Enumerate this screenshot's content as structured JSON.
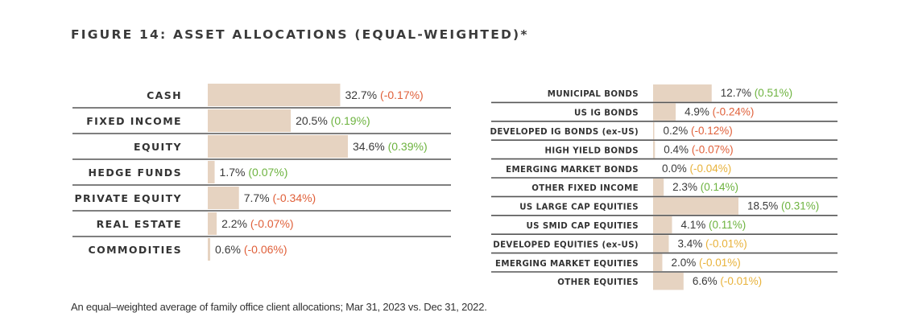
{
  "title": "FIGURE 14: ASSET ALLOCATIONS (EQUAL-WEIGHTED)*",
  "footnote": "An equal–weighted average of family office client allocations; Mar 31, 2023 vs. Dec 31, 2022.",
  "colors": {
    "bar": "#e6d3c1",
    "positive": "#6db33f",
    "negative": "#e0603a",
    "neutral_change": "#e8b23a",
    "rule": "#555555"
  },
  "chart_data": [
    {
      "type": "bar",
      "orientation": "horizontal",
      "categories": [
        "CASH",
        "FIXED INCOME",
        "EQUITY",
        "HEDGE FUNDS",
        "PRIVATE EQUITY",
        "REAL ESTATE",
        "COMMODITIES"
      ],
      "values": [
        32.7,
        20.5,
        34.6,
        1.7,
        7.7,
        2.2,
        0.6
      ],
      "value_labels": [
        "32.7%",
        "20.5%",
        "34.6%",
        "1.7%",
        "7.7%",
        "2.2%",
        "0.6%"
      ],
      "change_labels": [
        "(-0.17%)",
        "(0.19%)",
        "(0.39%)",
        "(0.07%)",
        "(-0.34%)",
        "(-0.07%)",
        "(-0.06%)"
      ],
      "change_status": [
        "negative",
        "positive",
        "positive",
        "positive",
        "negative",
        "negative",
        "negative"
      ],
      "xlim": [
        0,
        34.6
      ]
    },
    {
      "type": "bar",
      "orientation": "horizontal",
      "categories": [
        "MUNICIPAL BONDS",
        "US IG BONDS",
        "DEVELOPED IG BONDS (ex-US)",
        "HIGH YIELD BONDS",
        "EMERGING MARKET BONDS",
        "OTHER FIXED INCOME",
        "US LARGE CAP EQUITIES",
        "US SMID CAP EQUITIES",
        "DEVELOPED EQUITIES (ex-US)",
        "EMERGING MARKET EQUITIES",
        "OTHER EQUITIES"
      ],
      "values": [
        12.7,
        4.9,
        0.2,
        0.4,
        0.0,
        2.3,
        18.5,
        4.1,
        3.4,
        2.0,
        6.6
      ],
      "value_labels": [
        "12.7%",
        "4.9%",
        "0.2%",
        "0.4%",
        "0.0%",
        "2.3%",
        "18.5%",
        "4.1%",
        "3.4%",
        "2.0%",
        "6.6%"
      ],
      "change_labels": [
        "(0.51%)",
        "(-0.24%)",
        "(-0.12%)",
        "(-0.07%)",
        "(-0.04%)",
        "(0.14%)",
        "(0.31%)",
        "(0.11%)",
        "(-0.01%)",
        "(-0.01%)",
        "(-0.01%)"
      ],
      "change_status": [
        "positive",
        "negative",
        "negative",
        "negative",
        "neutral",
        "positive",
        "positive",
        "positive",
        "neutral",
        "neutral",
        "neutral"
      ],
      "xlim": [
        0,
        18.5
      ]
    }
  ]
}
